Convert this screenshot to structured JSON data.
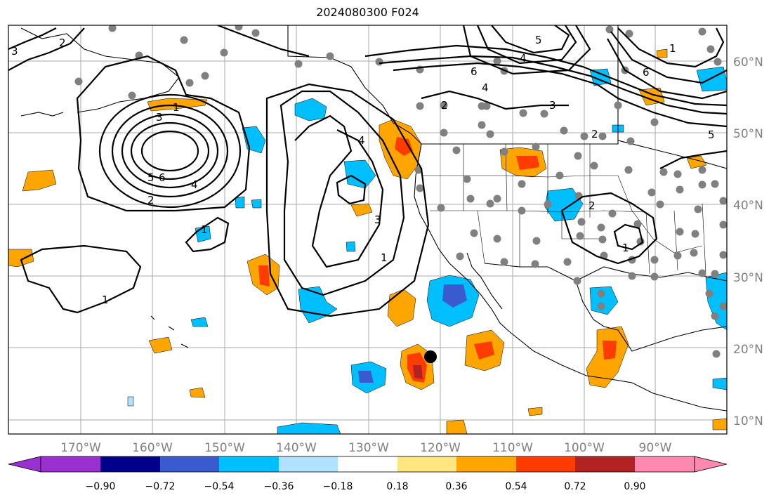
{
  "title": "2024080300 F024",
  "longitude_labels": [
    "170°W",
    "160°W",
    "150°W",
    "140°W",
    "130°W",
    "120°W",
    "110°W",
    "100°W",
    "90°W"
  ],
  "latitude_labels": [
    "60°N",
    "50°N",
    "40°N",
    "30°N",
    "20°N",
    "10°N"
  ],
  "colorbar": {
    "tick_labels": [
      "−0.90",
      "−0.72",
      "−0.54",
      "−0.36",
      "−0.18",
      "0.18",
      "0.36",
      "0.54",
      "0.72",
      "0.90"
    ],
    "colors": [
      "#9b30d0",
      "#00008b",
      "#3a5bd0",
      "#00bfff",
      "#b0e2ff",
      "#ffffff",
      "#ffe680",
      "#ffa500",
      "#ff3c00",
      "#b22222",
      "#ff88b0"
    ]
  },
  "contour_labels": [
    "1",
    "2",
    "3",
    "4",
    "5",
    "6",
    "1",
    "2",
    "3",
    "4",
    "1",
    "2",
    "3",
    "4",
    "5",
    "6",
    "1",
    "2",
    "3",
    "4",
    "5",
    "6",
    "1",
    "2",
    "1"
  ],
  "marker": "storm-center-dot"
}
